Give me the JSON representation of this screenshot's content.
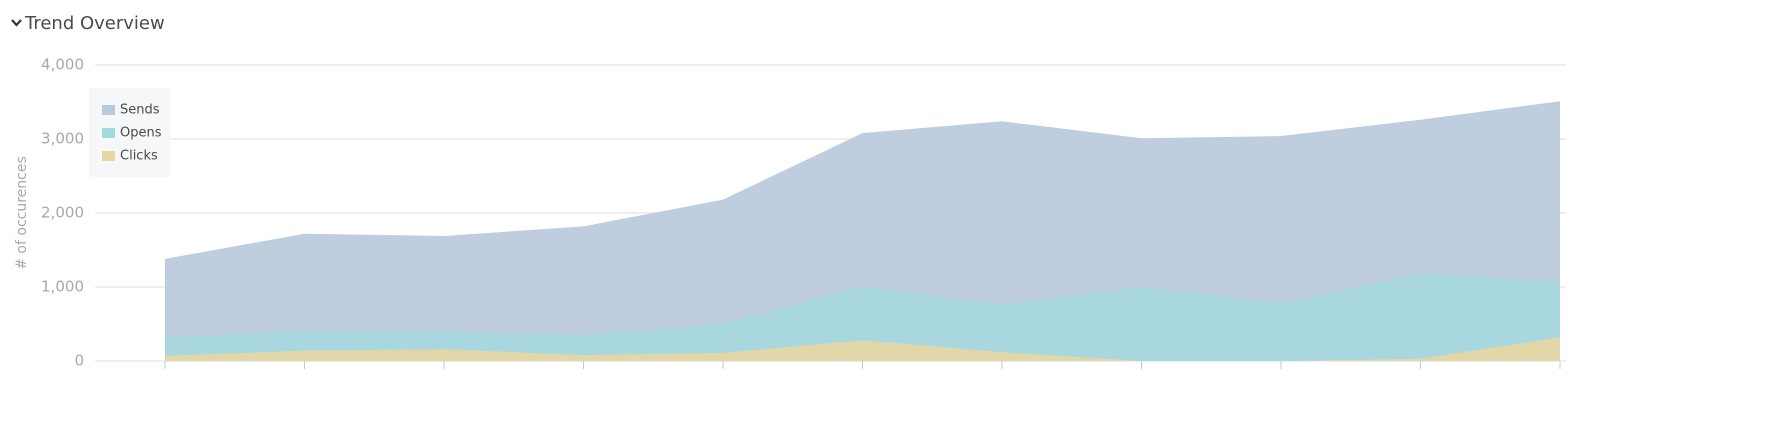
{
  "chart_data": {
    "type": "area",
    "title": "Trend Overview",
    "y_label": "# of occurences",
    "categories": [
      null,
      null,
      null,
      null,
      null,
      null,
      null,
      null,
      null,
      null,
      null
    ],
    "series": [
      {
        "name": "Sends",
        "color": "#b9cadb",
        "values": [
          1380,
          1720,
          1690,
          1820,
          2180,
          3080,
          3240,
          3010,
          3040,
          3260,
          3510
        ]
      },
      {
        "name": "Opens",
        "color": "#a6d8e0",
        "values": [
          320,
          400,
          390,
          350,
          500,
          1010,
          760,
          1000,
          780,
          1180,
          1070
        ]
      },
      {
        "name": "Clicks",
        "color": "#e6d7a3",
        "values": [
          70,
          140,
          160,
          80,
          110,
          280,
          120,
          0,
          0,
          30,
          320
        ]
      }
    ],
    "ylim": [
      0,
      4000
    ],
    "yticks": [
      {
        "value": 0,
        "label": "0"
      },
      {
        "value": 1000,
        "label": "1,000"
      },
      {
        "value": 2000,
        "label": "2,000"
      },
      {
        "value": 3000,
        "label": "3,000"
      },
      {
        "value": 4000,
        "label": "4,000"
      }
    ],
    "grid": true
  }
}
